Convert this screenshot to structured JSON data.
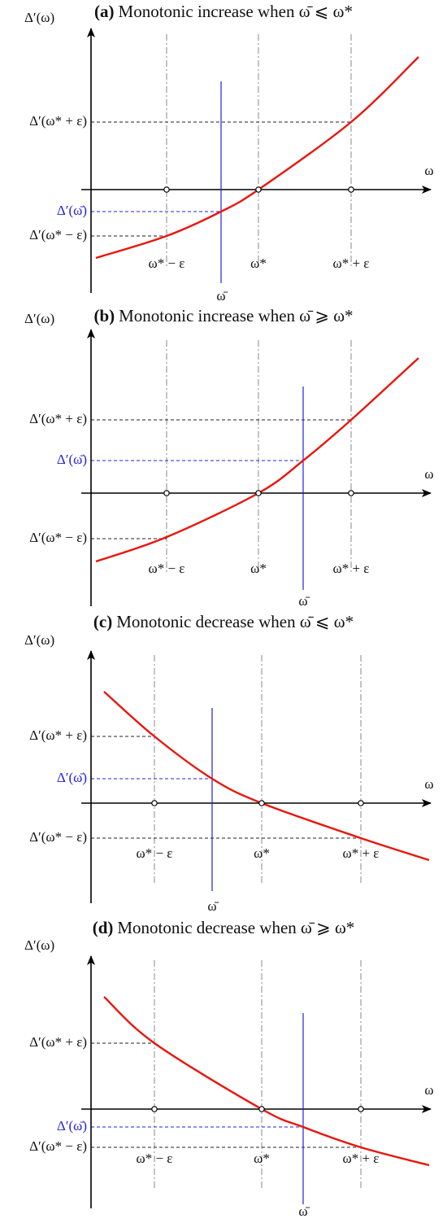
{
  "panels": [
    {
      "tag": "(a)",
      "title": "Monotonic increase when ω̄ ⩽ ω*",
      "y_axis_label": "Δ′(ω)",
      "x_axis_label": "ω",
      "y_labels": [
        "Δ′(ω* + ε)",
        "Δ′(ω̄)",
        "Δ′(ω* − ε)"
      ],
      "x_labels": [
        "ω* − ε",
        "ω*",
        "ω* + ε"
      ],
      "bar_label": "ω̄"
    },
    {
      "tag": "(b)",
      "title": "Monotonic increase when ω̄ ⩾ ω*",
      "y_axis_label": "Δ′(ω)",
      "x_axis_label": "ω",
      "y_labels": [
        "Δ′(ω* + ε)",
        "Δ′(ω̄)",
        "Δ′(ω* − ε)"
      ],
      "x_labels": [
        "ω* − ε",
        "ω*",
        "ω* + ε"
      ],
      "bar_label": "ω̄"
    },
    {
      "tag": "(c)",
      "title": "Monotonic decrease when ω̄ ⩽ ω*",
      "y_axis_label": "Δ′(ω)",
      "x_axis_label": "ω",
      "y_labels": [
        "Δ′(ω* + ε)",
        "Δ′(ω̄)",
        "Δ′(ω* − ε)"
      ],
      "x_labels": [
        "ω* − ε",
        "ω*",
        "ω* + ε"
      ],
      "bar_label": "ω̄"
    },
    {
      "tag": "(d)",
      "title": "Monotonic decrease when ω̄ ⩾ ω*",
      "y_axis_label": "Δ′(ω)",
      "x_axis_label": "ω",
      "y_labels": [
        "Δ′(ω* + ε)",
        "Δ′(ω̄)",
        "Δ′(ω* − ε)"
      ],
      "x_labels": [
        "ω* − ε",
        "ω*",
        "ω* + ε"
      ],
      "bar_label": "ω̄"
    }
  ]
}
